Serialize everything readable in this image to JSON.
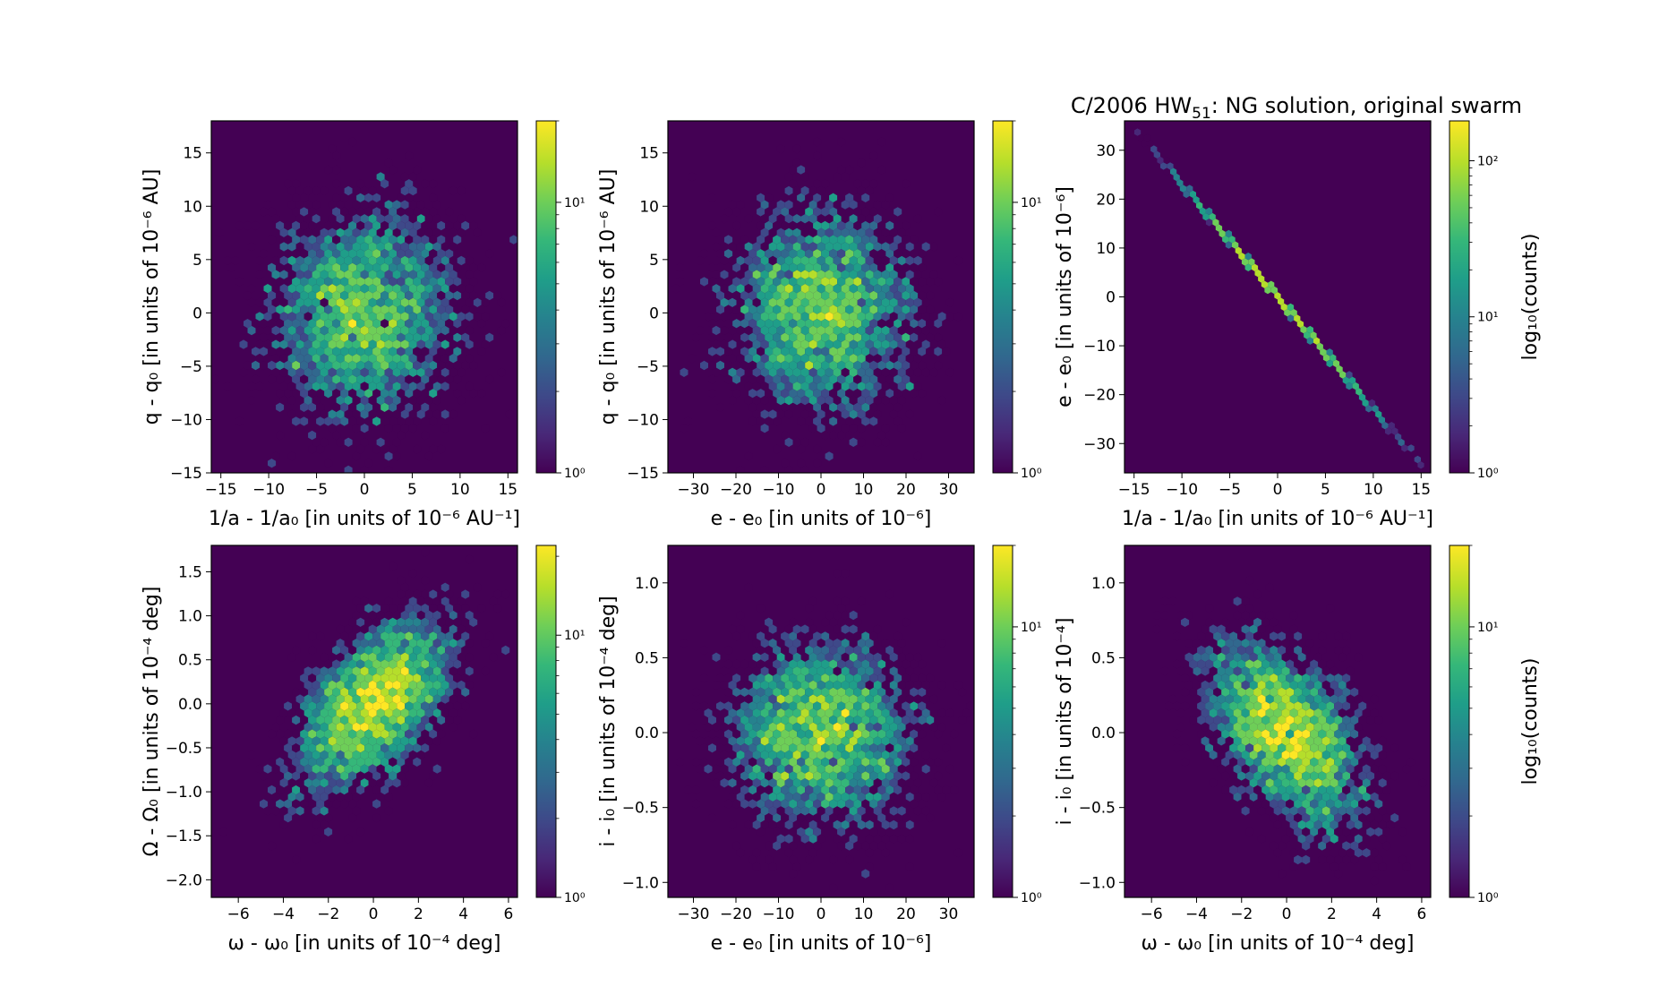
{
  "title": {
    "prefix": "C/2006 HW",
    "subscript": "51",
    "suffix": ":  NG solution, original swarm"
  },
  "colormap": [
    "#440154",
    "#482878",
    "#3e4989",
    "#31688e",
    "#26828e",
    "#1f9e89",
    "#35b779",
    "#6ece58",
    "#b5de2b",
    "#fde725"
  ],
  "chart_data": [
    {
      "type": "hexbin",
      "id": "p1",
      "xlabel": "1/a - 1/a₀ [in units of 10⁻⁶ AU⁻¹]",
      "ylabel": "q - q₀ [in units of 10⁻⁶ AU]",
      "xlim": [
        -16,
        16
      ],
      "ylim": [
        -15,
        18
      ],
      "xticks": [
        "−15",
        "−10",
        "−5",
        "0",
        "5",
        "10",
        "15"
      ],
      "xtick_values": [
        -15,
        -10,
        -5,
        0,
        5,
        10,
        15
      ],
      "yticks": [
        "−15",
        "−10",
        "−5",
        "0",
        "5",
        "10",
        "15"
      ],
      "ytick_values": [
        -15,
        -10,
        -5,
        0,
        5,
        10,
        15
      ],
      "distribution": {
        "x_sigma": 5,
        "y_sigma": 5,
        "correlation": 0
      },
      "colorbar": {
        "scale": "log",
        "min": 1,
        "max": 20,
        "ticks": [
          "10⁰",
          "10¹"
        ],
        "tick_values": [
          1,
          10
        ],
        "label": ""
      }
    },
    {
      "type": "hexbin",
      "id": "p2",
      "xlabel": "e - e₀ [in units of 10⁻⁶]",
      "ylabel": "q - q₀ [in units of 10⁻⁶ AU]",
      "xlim": [
        -36,
        36
      ],
      "ylim": [
        -15,
        18
      ],
      "xticks": [
        "−30",
        "−20",
        "−10",
        "0",
        "10",
        "20",
        "30"
      ],
      "xtick_values": [
        -30,
        -20,
        -10,
        0,
        10,
        20,
        30
      ],
      "yticks": [
        "−15",
        "−10",
        "−5",
        "0",
        "5",
        "10",
        "15"
      ],
      "ytick_values": [
        -15,
        -10,
        -5,
        0,
        5,
        10,
        15
      ],
      "distribution": {
        "x_sigma": 11,
        "y_sigma": 5,
        "correlation": 0
      },
      "colorbar": {
        "scale": "log",
        "min": 1,
        "max": 20,
        "ticks": [
          "10⁰",
          "10¹"
        ],
        "tick_values": [
          1,
          10
        ],
        "label": ""
      }
    },
    {
      "type": "hexbin",
      "id": "p3",
      "xlabel": "1/a - 1/a₀ [in units of 10⁻⁶ AU⁻¹]",
      "ylabel": "e - e₀ [in units of 10⁻⁶]",
      "xlim": [
        -16,
        16
      ],
      "ylim": [
        -36,
        36
      ],
      "xticks": [
        "−15",
        "−10",
        "−5",
        "0",
        "5",
        "10",
        "15"
      ],
      "xtick_values": [
        -15,
        -10,
        -5,
        0,
        5,
        10,
        15
      ],
      "yticks": [
        "−30",
        "−20",
        "−10",
        "0",
        "10",
        "20",
        "30"
      ],
      "ytick_values": [
        -30,
        -20,
        -10,
        0,
        10,
        20,
        30
      ],
      "line": {
        "slope": -2.3,
        "x_range": [
          -15,
          15
        ],
        "x_sigma": 5
      },
      "colorbar": {
        "scale": "log",
        "min": 1,
        "max": 180,
        "ticks": [
          "10⁰",
          "10¹",
          "10²"
        ],
        "tick_values": [
          1,
          10,
          100
        ],
        "label": "log₁₀(counts)"
      }
    },
    {
      "type": "hexbin",
      "id": "p4",
      "xlabel": "ω - ω₀ [in units of 10⁻⁴ deg]",
      "ylabel": "Ω - Ω₀ [in units of 10⁻⁴ deg]",
      "xlim": [
        -7.2,
        6.4
      ],
      "ylim": [
        -2.2,
        1.8
      ],
      "xticks": [
        "−6",
        "−4",
        "−2",
        "0",
        "2",
        "4",
        "6"
      ],
      "xtick_values": [
        -6,
        -4,
        -2,
        0,
        2,
        4,
        6
      ],
      "yticks": [
        "−2.0",
        "−1.5",
        "−1.0",
        "−0.5",
        "0.0",
        "0.5",
        "1.0",
        "1.5"
      ],
      "ytick_values": [
        -2.0,
        -1.5,
        -1.0,
        -0.5,
        0.0,
        0.5,
        1.0,
        1.5
      ],
      "distribution": {
        "x_sigma": 1.8,
        "y_sigma": 0.5,
        "correlation": 0.55
      },
      "colorbar": {
        "scale": "log",
        "min": 1,
        "max": 22,
        "ticks": [
          "10⁰",
          "10¹"
        ],
        "tick_values": [
          1,
          10
        ],
        "label": ""
      }
    },
    {
      "type": "hexbin",
      "id": "p5",
      "xlabel": "e - e₀ [in units of 10⁻⁶]",
      "ylabel": "i - i₀ [in units of 10⁻⁴ deg]",
      "xlim": [
        -36,
        36
      ],
      "ylim": [
        -1.1,
        1.25
      ],
      "xticks": [
        "−30",
        "−20",
        "−10",
        "0",
        "10",
        "20",
        "30"
      ],
      "xtick_values": [
        -30,
        -20,
        -10,
        0,
        10,
        20,
        30
      ],
      "yticks": [
        "−1.0",
        "−0.5",
        "0.0",
        "0.5",
        "1.0"
      ],
      "ytick_values": [
        -1.0,
        -0.5,
        0.0,
        0.5,
        1.0
      ],
      "distribution": {
        "x_sigma": 11,
        "y_sigma": 0.32,
        "correlation": 0
      },
      "colorbar": {
        "scale": "log",
        "min": 1,
        "max": 20,
        "ticks": [
          "10⁰",
          "10¹"
        ],
        "tick_values": [
          1,
          10
        ],
        "label": ""
      }
    },
    {
      "type": "hexbin",
      "id": "p6",
      "xlabel": "ω - ω₀ [in units of 10⁻⁴ deg]",
      "ylabel": "i - i₀ [in units of 10⁻⁴]",
      "xlim": [
        -7.2,
        6.4
      ],
      "ylim": [
        -1.1,
        1.25
      ],
      "xticks": [
        "−6",
        "−4",
        "−2",
        "0",
        "2",
        "4",
        "6"
      ],
      "xtick_values": [
        -6,
        -4,
        -2,
        0,
        2,
        4,
        6
      ],
      "yticks": [
        "−1.0",
        "−0.5",
        "0.0",
        "0.5",
        "1.0"
      ],
      "ytick_values": [
        -1.0,
        -0.5,
        0.0,
        0.5,
        1.0
      ],
      "distribution": {
        "x_sigma": 1.8,
        "y_sigma": 0.32,
        "correlation": -0.5
      },
      "colorbar": {
        "scale": "log",
        "min": 1,
        "max": 20,
        "ticks": [
          "10⁰",
          "10¹"
        ],
        "tick_values": [
          1,
          10
        ],
        "label": "log₁₀(counts)"
      }
    }
  ]
}
